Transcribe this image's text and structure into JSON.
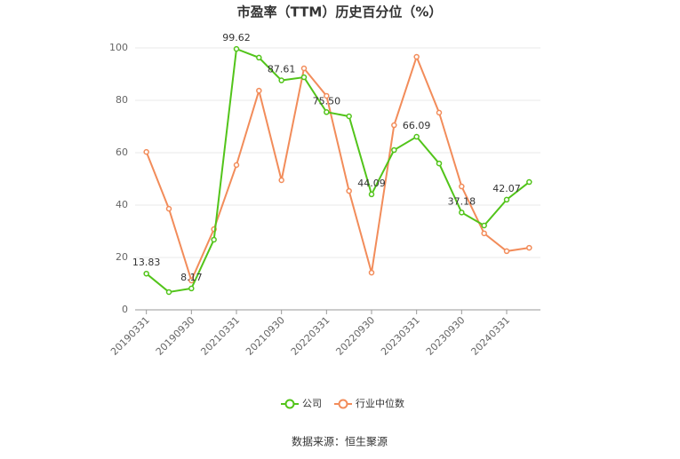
{
  "chart_data": {
    "type": "line",
    "title": "市盈率（TTM）历史百分位（%）",
    "source": "数据来源：恒生聚源",
    "categories": [
      "20190331",
      null,
      "20190930",
      null,
      "20210331",
      null,
      "20210930",
      null,
      "20220331",
      null,
      "20220930",
      null,
      "20230331",
      null,
      "20230930",
      null,
      "20240331",
      null
    ],
    "series": [
      {
        "name": "公司",
        "color": "#52c41a",
        "values": [
          13.83,
          6.8,
          8.17,
          26.8,
          99.62,
          96.3,
          87.61,
          88.8,
          75.5,
          73.9,
          44.09,
          61.0,
          66.09,
          55.9,
          37.18,
          32.2,
          42.07,
          48.8
        ],
        "value_labels": [
          "13.83",
          null,
          "8.17",
          null,
          "99.62",
          null,
          "87.61",
          null,
          "75.50",
          null,
          "44.09",
          null,
          "66.09",
          null,
          "37.18",
          null,
          "42.07",
          null
        ]
      },
      {
        "name": "行业中位数",
        "color": "#f28c5a",
        "values": [
          60.3,
          38.6,
          11.2,
          30.8,
          55.3,
          83.7,
          49.5,
          92.2,
          81.7,
          45.4,
          14.2,
          70.5,
          96.6,
          75.3,
          47.1,
          29.2,
          22.4,
          23.7
        ]
      }
    ],
    "ylim": [
      0,
      100
    ],
    "yticks": [
      0,
      20,
      40,
      60,
      80,
      100
    ],
    "grid": true,
    "legend": "bottom"
  }
}
